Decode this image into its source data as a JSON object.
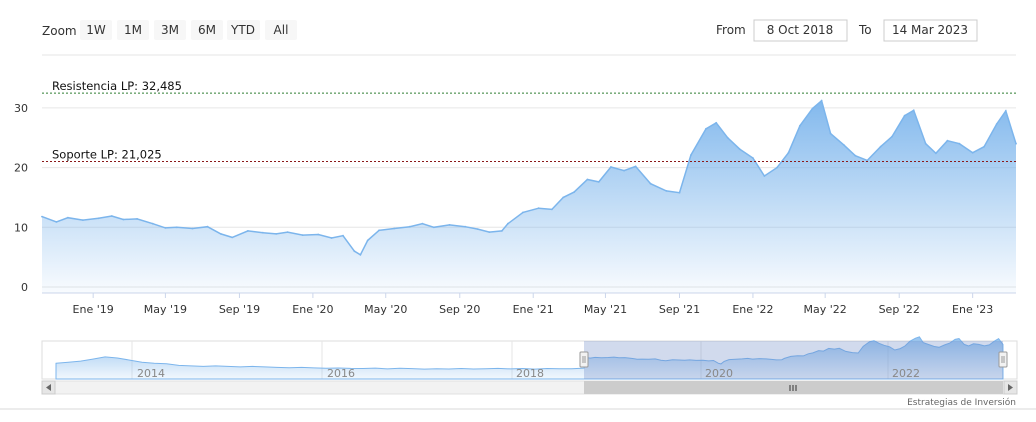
{
  "range_selector": {
    "zoom_label": "Zoom",
    "buttons": [
      "1W",
      "1M",
      "3M",
      "6M",
      "YTD",
      "All"
    ]
  },
  "date_inputs": {
    "from_label": "From",
    "from_value": "8 Oct 2018",
    "to_label": "To",
    "to_value": "14 Mar 2023"
  },
  "plot_lines": {
    "resistance": {
      "label": "Resistencia LP: 32,485",
      "value": 32.485,
      "color": "#2e7d32"
    },
    "support": {
      "label": "Soporte LP: 21,025",
      "value": 21.025,
      "color": "#8b1a1a"
    }
  },
  "credit": "Estrategias de Inversión",
  "navigator": {
    "year_labels": [
      "2014",
      "2016",
      "2018",
      "2020",
      "2022"
    ]
  },
  "colors": {
    "series_line": "#7cb5ec",
    "navigator_mask": "rgba(102,133,194,0.3)"
  },
  "chart_data": {
    "type": "area",
    "ylim": [
      0,
      33
    ],
    "yticks": [
      0,
      10,
      20,
      30
    ],
    "xticks": [
      "Ene '19",
      "May '19",
      "Sep '19",
      "Ene '20",
      "May '20",
      "Sep '20",
      "Ene '21",
      "May '21",
      "Sep '21",
      "Ene '22",
      "May '22",
      "Sep '22",
      "Ene '23"
    ],
    "grid": true,
    "legend": "none",
    "x": [
      "2018-10-08",
      "2018-11-01",
      "2018-11-20",
      "2018-12-15",
      "2019-01-10",
      "2019-02-01",
      "2019-02-20",
      "2019-03-15",
      "2019-04-10",
      "2019-05-01",
      "2019-05-20",
      "2019-06-15",
      "2019-07-10",
      "2019-08-01",
      "2019-08-20",
      "2019-09-15",
      "2019-10-10",
      "2019-11-01",
      "2019-11-20",
      "2019-12-15",
      "2020-01-10",
      "2020-02-01",
      "2020-02-20",
      "2020-03-10",
      "2020-03-20",
      "2020-04-01",
      "2020-04-20",
      "2020-05-15",
      "2020-06-10",
      "2020-07-01",
      "2020-07-20",
      "2020-08-15",
      "2020-09-10",
      "2020-10-01",
      "2020-10-20",
      "2020-11-10",
      "2020-11-20",
      "2020-12-15",
      "2021-01-10",
      "2021-02-01",
      "2021-02-20",
      "2021-03-10",
      "2021-04-01",
      "2021-04-20",
      "2021-05-10",
      "2021-06-01",
      "2021-06-20",
      "2021-07-15",
      "2021-08-10",
      "2021-09-01",
      "2021-09-20",
      "2021-10-15",
      "2021-11-01",
      "2021-11-20",
      "2021-12-10",
      "2022-01-01",
      "2022-01-20",
      "2022-02-10",
      "2022-03-01",
      "2022-03-20",
      "2022-04-10",
      "2022-04-25",
      "2022-05-10",
      "2022-06-01",
      "2022-06-20",
      "2022-07-10",
      "2022-08-01",
      "2022-08-20",
      "2022-09-10",
      "2022-09-25",
      "2022-10-15",
      "2022-11-01",
      "2022-11-20",
      "2022-12-10",
      "2023-01-01",
      "2023-01-20",
      "2023-02-10",
      "2023-02-25",
      "2023-03-14"
    ],
    "values": [
      11.8,
      10.9,
      11.6,
      11.2,
      11.5,
      11.9,
      11.3,
      11.4,
      10.6,
      9.9,
      10.0,
      9.8,
      10.1,
      8.9,
      8.3,
      9.4,
      9.1,
      8.9,
      9.2,
      8.7,
      8.8,
      8.2,
      8.6,
      6.0,
      5.4,
      7.8,
      9.5,
      9.8,
      10.1,
      10.6,
      10.0,
      10.4,
      10.1,
      9.7,
      9.2,
      9.4,
      10.6,
      12.5,
      13.2,
      13.0,
      15.0,
      15.9,
      18.0,
      17.6,
      20.1,
      19.5,
      20.2,
      17.3,
      16.1,
      15.8,
      22.1,
      26.5,
      27.5,
      25.0,
      23.1,
      21.6,
      18.6,
      20.0,
      22.5,
      27.0,
      29.9,
      31.2,
      25.7,
      23.8,
      22.0,
      21.2,
      23.5,
      25.2,
      28.7,
      29.6,
      24.0,
      22.4,
      24.5,
      24.0,
      22.5,
      23.5,
      27.3,
      29.5,
      24.0
    ]
  }
}
